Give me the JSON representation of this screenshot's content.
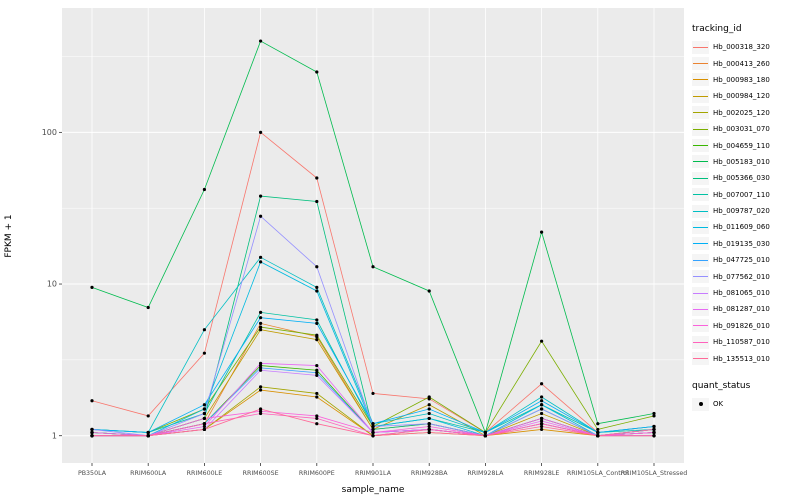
{
  "chart_data": {
    "type": "line",
    "title": "",
    "xlabel": "sample_name",
    "ylabel": "FPKM + 1",
    "y_scale": "log10",
    "y_ticks": [
      1,
      10,
      100
    ],
    "ylim_log10": [
      -0.18,
      2.82
    ],
    "grid": true,
    "legend_position": "right",
    "panel_bg": "#EBEBEB",
    "grid_color": "#FFFFFF",
    "point_color": "#000000",
    "categories": [
      "PB350LA",
      "RRIM600LA",
      "RRIM600LE",
      "RRIM600SE",
      "RRIM600PE",
      "RRIM901LA",
      "RRIM928BA",
      "RRIM928LA",
      "RRIM928LE",
      "RRIM105LA_Control",
      "RRIM105LA_Stressed"
    ],
    "series": [
      {
        "name": "Hb_000318_320",
        "color": "#F8766D",
        "values": [
          1.7,
          1.35,
          3.5,
          100,
          50,
          1.9,
          1.75,
          1.05,
          2.2,
          1.05,
          1.15
        ]
      },
      {
        "name": "Hb_000413_260",
        "color": "#EA8331",
        "values": [
          1.05,
          1.0,
          1.2,
          5.5,
          4.5,
          1.1,
          1.2,
          1.0,
          1.3,
          1.0,
          1.05
        ]
      },
      {
        "name": "Hb_000983_180",
        "color": "#D89000",
        "values": [
          1.0,
          1.0,
          1.1,
          2.0,
          1.8,
          1.0,
          1.05,
          1.0,
          1.1,
          1.0,
          1.0
        ]
      },
      {
        "name": "Hb_000984_120",
        "color": "#C09B00",
        "values": [
          1.05,
          1.0,
          1.3,
          5.0,
          4.3,
          1.1,
          1.6,
          1.0,
          1.4,
          1.0,
          1.05
        ]
      },
      {
        "name": "Hb_002025_120",
        "color": "#A3A500",
        "values": [
          1.0,
          1.0,
          1.1,
          2.1,
          1.9,
          1.0,
          1.1,
          1.0,
          1.2,
          1.0,
          1.0
        ]
      },
      {
        "name": "Hb_003031_070",
        "color": "#7CAE00",
        "values": [
          1.1,
          1.05,
          1.5,
          5.2,
          4.6,
          1.15,
          1.8,
          1.05,
          4.2,
          1.1,
          1.35
        ]
      },
      {
        "name": "Hb_004659_110",
        "color": "#39B600",
        "values": [
          1.0,
          1.0,
          1.2,
          2.9,
          2.7,
          1.05,
          1.1,
          1.0,
          1.3,
          1.0,
          1.05
        ]
      },
      {
        "name": "Hb_005183_010",
        "color": "#00BB4E",
        "values": [
          9.5,
          7,
          42,
          400,
          250,
          13,
          9,
          1.05,
          22,
          1.2,
          1.4
        ]
      },
      {
        "name": "Hb_005366_030",
        "color": "#00BF7D",
        "values": [
          1.05,
          1.0,
          1.3,
          38,
          35,
          1.1,
          1.2,
          1.0,
          1.5,
          1.0,
          1.1
        ]
      },
      {
        "name": "Hb_007007_110",
        "color": "#00C1A3",
        "values": [
          1.1,
          1.05,
          1.4,
          6.5,
          5.8,
          1.15,
          1.3,
          1.05,
          1.6,
          1.05,
          1.1
        ]
      },
      {
        "name": "Hb_009787_020",
        "color": "#00BFC4",
        "values": [
          1.1,
          1.05,
          5.0,
          15,
          9.5,
          1.2,
          1.4,
          1.05,
          1.8,
          1.05,
          1.15
        ]
      },
      {
        "name": "Hb_011609_060",
        "color": "#00BAE0",
        "values": [
          1.05,
          1.0,
          1.5,
          14,
          9.0,
          1.15,
          1.3,
          1.0,
          1.6,
          1.0,
          1.1
        ]
      },
      {
        "name": "Hb_019135_030",
        "color": "#00B0F6",
        "values": [
          1.1,
          1.05,
          1.6,
          6.0,
          5.5,
          1.2,
          1.5,
          1.05,
          1.7,
          1.05,
          1.15
        ]
      },
      {
        "name": "Hb_047725_010",
        "color": "#35A2FF",
        "values": [
          1.0,
          1.0,
          1.2,
          2.8,
          2.6,
          1.05,
          1.1,
          1.0,
          1.3,
          1.0,
          1.05
        ]
      },
      {
        "name": "Hb_077562_010",
        "color": "#9590FF",
        "values": [
          1.1,
          1.0,
          1.4,
          28,
          13,
          1.15,
          1.2,
          1.0,
          1.5,
          1.0,
          1.1
        ]
      },
      {
        "name": "Hb_081065_010",
        "color": "#C77CFF",
        "values": [
          1.0,
          1.0,
          1.1,
          2.7,
          2.5,
          1.05,
          1.1,
          1.0,
          1.2,
          1.0,
          1.0
        ]
      },
      {
        "name": "Hb_081287_010",
        "color": "#E76BF3",
        "values": [
          1.0,
          1.0,
          1.15,
          3.0,
          2.9,
          1.05,
          1.1,
          1.0,
          1.25,
          1.0,
          1.05
        ]
      },
      {
        "name": "Hb_091826_010",
        "color": "#FA62DB",
        "values": [
          1.05,
          1.0,
          1.3,
          1.45,
          1.35,
          1.05,
          1.15,
          1.0,
          1.3,
          1.0,
          1.05
        ]
      },
      {
        "name": "Hb_110587_010",
        "color": "#FF62BC",
        "values": [
          1.0,
          1.0,
          1.2,
          1.4,
          1.3,
          1.0,
          1.1,
          1.0,
          1.2,
          1.0,
          1.0
        ]
      },
      {
        "name": "Hb_135513_010",
        "color": "#FF6A98",
        "values": [
          1.0,
          1.0,
          1.1,
          1.5,
          1.2,
          1.0,
          1.05,
          1.0,
          1.15,
          1.0,
          1.1
        ]
      }
    ],
    "legend": {
      "tracking_title": "tracking_id",
      "quant_title": "quant_status",
      "quant_items": [
        {
          "label": "OK"
        }
      ]
    }
  }
}
